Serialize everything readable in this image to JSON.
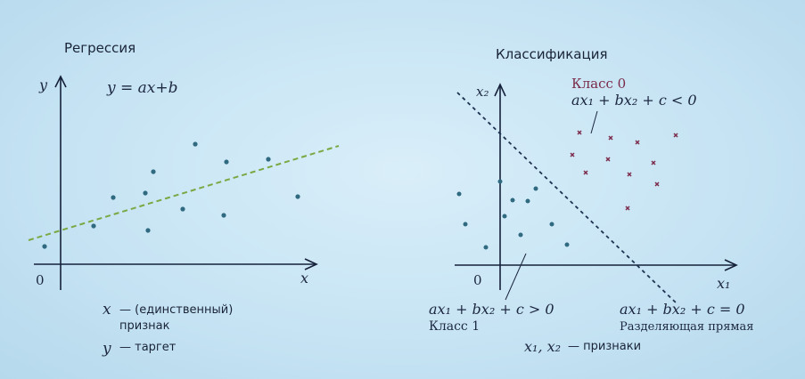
{
  "regression": {
    "title": "Регрессия",
    "axis_y": "y",
    "axis_x": "x",
    "origin": "0",
    "formula": "y = ax+b",
    "note_x_var": "x",
    "note_x_line1": "— (единственный)",
    "note_x_line2": "признак",
    "note_y_var": "y",
    "note_y_text": "— таргет",
    "line_color": "#7aa843",
    "point_color": "#2f6a80"
  },
  "classification": {
    "title": "Классификация",
    "axis_y": "x₂",
    "axis_x": "x₁",
    "origin": "0",
    "class0_label": "Класс 0",
    "class0_inequality": "ax₁ + bx₂ + c < 0",
    "class1_inequality": "ax₁ + bx₂ + c > 0",
    "class1_label": "Класс 1",
    "boundary_equation": "ax₁ + bx₂ + c = 0",
    "boundary_label": "Разделяющая прямая",
    "features_vars": "x₁, x₂",
    "features_text": "— признаки",
    "class0_color": "#7b2a4a",
    "class1_color": "#2f6a80",
    "boundary_color": "#1e3350"
  }
}
